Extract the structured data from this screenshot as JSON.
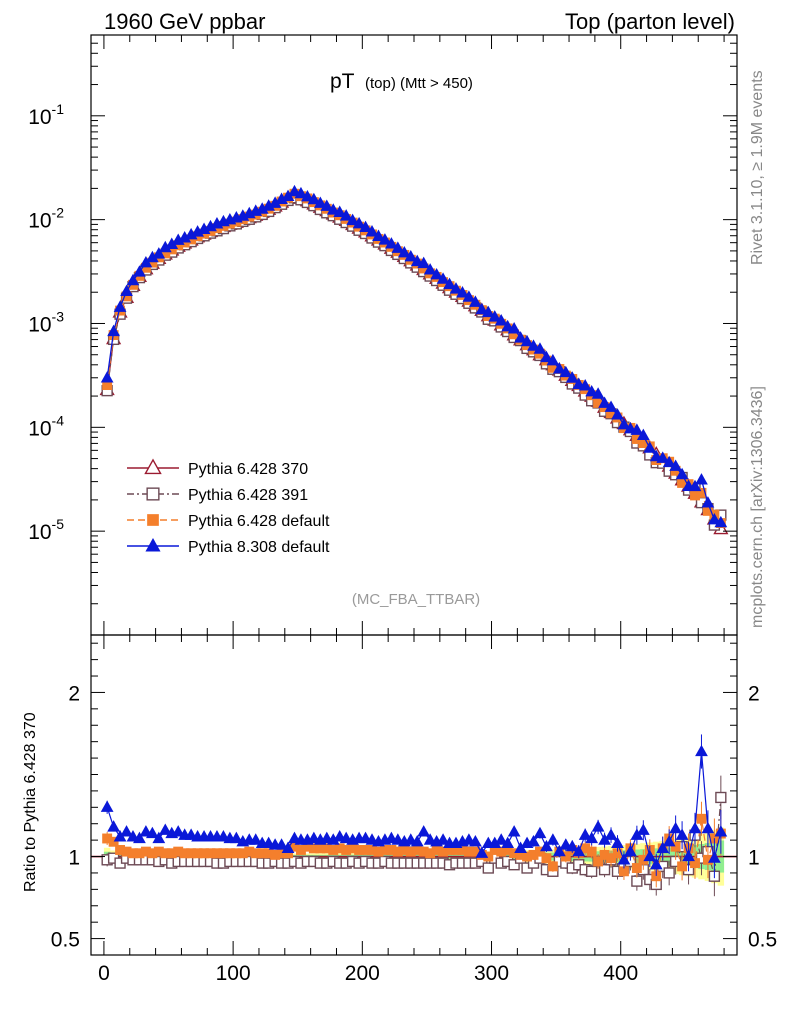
{
  "header": {
    "left": "1960 GeV ppbar",
    "right": "Top (parton level)"
  },
  "side_labels": {
    "rivet": "Rivet 3.1.10, ≥ 1.9M events",
    "mcplots": "mcplots.cern.ch [arXiv:1306.3436]"
  },
  "chart_data": [
    {
      "type": "line",
      "title_main": "pT",
      "title_sub": "(top) (Mtt > 450)",
      "watermark": "(MC_FBA_TTBAR)",
      "xlim": [
        -10,
        490
      ],
      "ylim": [
        1e-06,
        0.6
      ],
      "yscale": "log",
      "ytick_values": [
        1e-05,
        0.0001,
        0.001,
        0.01,
        0.1
      ],
      "ytick_labels": [
        "10^-5",
        "10^-4",
        "10^-3",
        "10^-2",
        "10^-1"
      ],
      "x": [
        2.5,
        7.5,
        12.5,
        17.5,
        22.5,
        27.5,
        32.5,
        37.5,
        42.5,
        47.5,
        52.5,
        57.5,
        62.5,
        67.5,
        72.5,
        77.5,
        82.5,
        87.5,
        92.5,
        97.5,
        102.5,
        107.5,
        112.5,
        117.5,
        122.5,
        127.5,
        132.5,
        137.5,
        142.5,
        147.5,
        152.5,
        157.5,
        162.5,
        167.5,
        172.5,
        177.5,
        182.5,
        187.5,
        192.5,
        197.5,
        202.5,
        207.5,
        212.5,
        217.5,
        222.5,
        227.5,
        232.5,
        237.5,
        242.5,
        247.5,
        252.5,
        257.5,
        262.5,
        267.5,
        272.5,
        277.5,
        282.5,
        287.5,
        292.5,
        297.5,
        302.5,
        307.5,
        312.5,
        317.5,
        322.5,
        327.5,
        332.5,
        337.5,
        342.5,
        347.5,
        352.5,
        357.5,
        362.5,
        367.5,
        372.5,
        377.5,
        382.5,
        387.5,
        392.5,
        397.5,
        402.5,
        407.5,
        412.5,
        417.5,
        422.5,
        427.5,
        432.5,
        437.5,
        442.5,
        447.5,
        452.5,
        457.5,
        462.5,
        467.5,
        472.5,
        477.5
      ],
      "reference_values": [
        0.00023,
        0.00071,
        0.00128,
        0.00177,
        0.00231,
        0.00282,
        0.00334,
        0.00378,
        0.00421,
        0.00464,
        0.00507,
        0.0055,
        0.00591,
        0.00633,
        0.00679,
        0.0072,
        0.00764,
        0.00813,
        0.00854,
        0.00898,
        0.00938,
        0.00992,
        0.01039,
        0.01096,
        0.01169,
        0.0125,
        0.01345,
        0.01465,
        0.01595,
        0.01675,
        0.01617,
        0.01509,
        0.01405,
        0.01306,
        0.01212,
        0.01125,
        0.0105,
        0.00977,
        0.00892,
        0.00823,
        0.00758,
        0.00693,
        0.00633,
        0.00579,
        0.00526,
        0.00482,
        0.0044,
        0.00399,
        0.00363,
        0.00329,
        0.00298,
        0.0027,
        0.00243,
        0.0022,
        0.00199,
        0.00181,
        0.00163,
        0.00147,
        0.00133,
        0.00118,
        0.00107,
        0.000964,
        0.000862,
        0.000772,
        0.000691,
        0.000619,
        0.000555,
        0.000497,
        0.000444,
        0.000398,
        0.000354,
        0.000315,
        0.000281,
        0.000251,
        0.000222,
        0.000198,
        0.000177,
        0.000155,
        0.000138,
        0.000122,
        0.000108,
        9.4e-05,
        8.3e-05,
        7.2e-05,
        6.3e-05,
        5.5e-05,
        4.8e-05,
        4.2e-05,
        3.6e-05,
        3.1e-05,
        2.7e-05,
        2.3e-05,
        1.9e-05,
        1.6e-05,
        1.3e-05,
        1.05e-05
      ],
      "ylabel": ""
    },
    {
      "type": "line",
      "ylabel": "Ratio to Pythia 6.428 370",
      "xlim": [
        -10,
        490
      ],
      "ylim": [
        0.4,
        2.35
      ],
      "ytick_values": [
        0.5,
        1,
        2
      ],
      "ytick_labels": [
        "0.5",
        "1",
        "2"
      ],
      "xtick_values": [
        0,
        100,
        200,
        300,
        400
      ],
      "xtick_labels": [
        "0",
        "100",
        "200",
        "300",
        "400"
      ],
      "series": [
        {
          "name": "Pythia 6.428 370",
          "color": "#9b1b30",
          "marker": "open-triangle",
          "line": "solid",
          "ratio_values": [
            1.0,
            1.0,
            1.0,
            1.0,
            1.0,
            1.0,
            1.0,
            1.0,
            1.0,
            1.0,
            1.0,
            1.0,
            1.0,
            1.0,
            1.0,
            1.0,
            1.0,
            1.0,
            1.0,
            1.0,
            1.0,
            1.0,
            1.0,
            1.0,
            1.0,
            1.0,
            1.0,
            1.0,
            1.0,
            1.0,
            1.0,
            1.0,
            1.0,
            1.0,
            1.0,
            1.0,
            1.0,
            1.0,
            1.0,
            1.0,
            1.0,
            1.0,
            1.0,
            1.0,
            1.0,
            1.0,
            1.0,
            1.0,
            1.0,
            1.0,
            1.0,
            1.0,
            1.0,
            1.0,
            1.0,
            1.0,
            1.0,
            1.0,
            1.0,
            1.0,
            1.0,
            1.0,
            1.0,
            1.0,
            1.0,
            1.0,
            1.0,
            1.0,
            1.0,
            1.0,
            1.0,
            1.0,
            1.0,
            1.0,
            1.0,
            1.0,
            1.0,
            1.0,
            1.0,
            1.0,
            1.0,
            1.0,
            1.0,
            1.0,
            1.0,
            1.0,
            1.0,
            1.0,
            1.0,
            1.0,
            1.0,
            1.0,
            1.0,
            1.0,
            1.0,
            1.0
          ]
        },
        {
          "name": "Pythia 6.428 391",
          "color": "#6d4a55",
          "marker": "open-square",
          "line": "dash-dot",
          "ratio_values": [
            0.98,
            0.99,
            0.96,
            0.99,
            0.98,
            0.98,
            0.98,
            0.98,
            0.97,
            0.98,
            0.96,
            0.97,
            0.97,
            0.97,
            0.97,
            0.97,
            0.97,
            0.96,
            0.96,
            0.97,
            0.97,
            0.97,
            0.97,
            0.97,
            0.96,
            0.96,
            0.97,
            0.96,
            0.96,
            0.97,
            0.96,
            0.97,
            0.97,
            0.96,
            0.96,
            0.97,
            0.96,
            0.96,
            0.97,
            0.96,
            0.97,
            0.96,
            0.96,
            0.97,
            0.96,
            0.96,
            0.96,
            0.96,
            0.96,
            0.96,
            0.96,
            0.96,
            0.96,
            0.95,
            0.96,
            0.96,
            0.96,
            0.96,
            0.97,
            0.93,
            0.99,
            0.96,
            0.97,
            0.95,
            0.99,
            0.93,
            0.96,
            0.99,
            0.92,
            0.91,
            0.97,
            0.96,
            0.93,
            0.95,
            0.92,
            0.91,
            0.97,
            0.92,
            0.98,
            0.91,
            0.93,
            0.97,
            0.85,
            0.92,
            0.86,
            0.83,
            0.94,
            0.9,
            0.97,
            1.06,
            0.92,
            1.13,
            0.99,
            1.03,
            0.88,
            1.36
          ]
        },
        {
          "name": "Pythia 6.428 default",
          "color": "#f47f2c",
          "marker": "filled-square",
          "line": "dashed",
          "ratio_values": [
            1.11,
            1.09,
            1.04,
            1.03,
            1.02,
            1.02,
            1.03,
            1.02,
            1.03,
            1.02,
            1.02,
            1.03,
            1.02,
            1.02,
            1.02,
            1.02,
            1.02,
            1.02,
            1.02,
            1.02,
            1.02,
            1.02,
            1.03,
            1.02,
            1.02,
            1.02,
            1.01,
            1.02,
            1.02,
            1.06,
            1.04,
            1.06,
            1.05,
            1.05,
            1.05,
            1.04,
            1.05,
            1.04,
            1.05,
            1.04,
            1.04,
            1.04,
            1.03,
            1.04,
            1.04,
            1.03,
            1.04,
            1.03,
            1.04,
            1.03,
            1.02,
            1.04,
            1.03,
            1.04,
            1.04,
            1.04,
            1.03,
            1.03,
            1.01,
            1.0,
            1.04,
            1.03,
            1.04,
            1.02,
            1.01,
            1.0,
            1.01,
            1.03,
            0.99,
            0.94,
            1.03,
            1.0,
            1.04,
            1.02,
            1.05,
            1.03,
            0.97,
            1.01,
            0.99,
            1.02,
            0.91,
            1.05,
            0.93,
            0.98,
            1.04,
            0.88,
            1.05,
            1.11,
            1.06,
            0.94,
            1.05,
            0.96,
            1.23,
            0.98,
            1.11,
            1.14
          ]
        },
        {
          "name": "Pythia 8.308 default",
          "color": "#0a18d8",
          "marker": "filled-triangle",
          "line": "solid",
          "ratio_values": [
            1.3,
            1.18,
            1.12,
            1.15,
            1.12,
            1.11,
            1.15,
            1.14,
            1.11,
            1.16,
            1.14,
            1.15,
            1.13,
            1.13,
            1.12,
            1.12,
            1.12,
            1.12,
            1.12,
            1.11,
            1.11,
            1.09,
            1.1,
            1.1,
            1.08,
            1.08,
            1.07,
            1.07,
            1.05,
            1.11,
            1.1,
            1.1,
            1.11,
            1.1,
            1.11,
            1.1,
            1.12,
            1.11,
            1.1,
            1.11,
            1.11,
            1.1,
            1.09,
            1.1,
            1.11,
            1.1,
            1.09,
            1.1,
            1.09,
            1.15,
            1.1,
            1.09,
            1.1,
            1.08,
            1.08,
            1.09,
            1.1,
            1.09,
            1.02,
            1.08,
            1.08,
            1.1,
            1.08,
            1.15,
            1.05,
            1.08,
            1.09,
            1.14,
            1.06,
            1.1,
            1.03,
            1.07,
            1.06,
            1.03,
            1.13,
            1.11,
            1.18,
            1.1,
            1.13,
            1.08,
            0.98,
            1.03,
            1.13,
            1.16,
            1.0,
            0.95,
            1.05,
            1.09,
            1.17,
            1.13,
            1.0,
            1.17,
            1.64,
            1.17,
            0.99,
            1.15
          ]
        }
      ]
    }
  ]
}
